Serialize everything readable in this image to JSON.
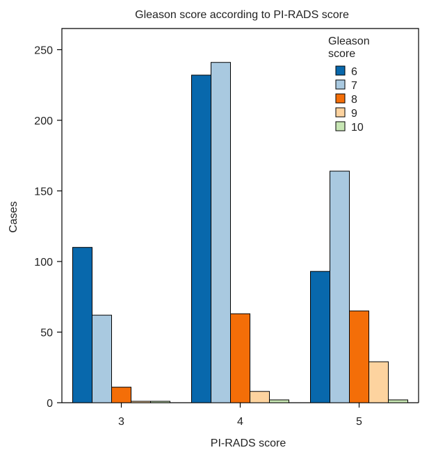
{
  "chart_data": {
    "type": "bar",
    "title": "Gleason score according to PI-RADS score",
    "xlabel": "PI-RADS score",
    "ylabel": "Cases",
    "categories": [
      "3",
      "4",
      "5"
    ],
    "ylim": [
      0,
      265
    ],
    "yticks": [
      0,
      50,
      100,
      150,
      200,
      250
    ],
    "grid": false,
    "legend": {
      "title": "Gleason score",
      "placement": "top-right"
    },
    "series": [
      {
        "name": "6",
        "color": "#0868ac",
        "values": [
          110,
          232,
          93
        ]
      },
      {
        "name": "7",
        "color": "#a9c9e0",
        "values": [
          62,
          241,
          164
        ]
      },
      {
        "name": "8",
        "color": "#f46e08",
        "values": [
          11,
          63,
          65
        ]
      },
      {
        "name": "9",
        "color": "#fdd39f",
        "values": [
          1,
          8,
          29
        ]
      },
      {
        "name": "10",
        "color": "#c7e6b4",
        "values": [
          1,
          2,
          2
        ]
      }
    ]
  }
}
